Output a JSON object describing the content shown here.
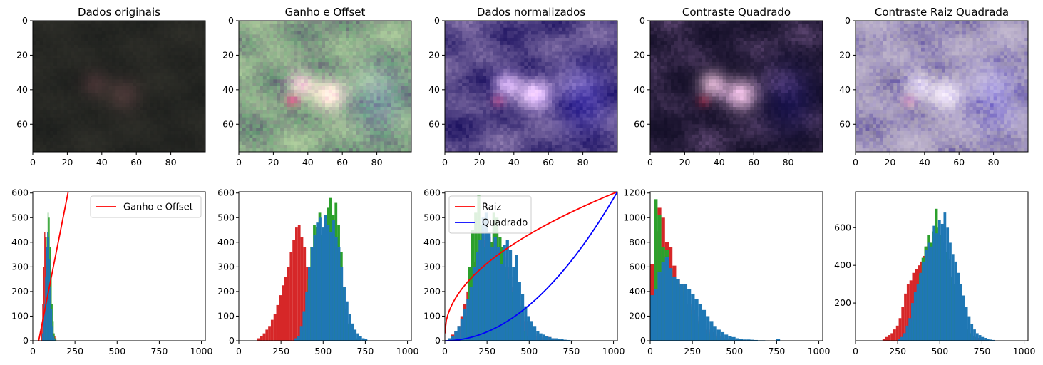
{
  "colors": {
    "red": "#d62728",
    "green": "#2ca02c",
    "blue": "#1f77b4",
    "line_red": "#ff0000",
    "line_blue": "#0000ff"
  },
  "images": [
    {
      "title": "Dados originais",
      "style": "original"
    },
    {
      "title": "Ganho e Offset",
      "style": "gain"
    },
    {
      "title": "Dados normalizados",
      "style": "normalized"
    },
    {
      "title": "Contraste Quadrado",
      "style": "square"
    },
    {
      "title": "Contraste Raiz Quadrada",
      "style": "sqrt"
    }
  ],
  "image_axes": {
    "xticks": [
      "0",
      "20",
      "40",
      "60",
      "80"
    ],
    "yticks": [
      "0",
      "20",
      "40",
      "60"
    ],
    "xlim": [
      0,
      100
    ],
    "ylim": [
      76,
      0
    ]
  },
  "chart_data": [
    {
      "type": "histogram",
      "xlim": [
        0,
        1023
      ],
      "ylim": [
        0,
        605
      ],
      "xticks": [
        "0",
        "250",
        "500",
        "750",
        "1000"
      ],
      "yticks": [
        "0",
        "100",
        "200",
        "300",
        "400",
        "500",
        "600"
      ],
      "series": [
        {
          "color": "red",
          "bins": {
            "start": 50,
            "width": 6,
            "values": [
              60,
              150,
              300,
              440,
              420,
              300,
              220,
              180,
              120,
              90,
              60,
              40,
              30,
              20,
              10
            ]
          }
        },
        {
          "color": "green",
          "bins": {
            "start": 70,
            "width": 6,
            "values": [
              50,
              200,
              420,
              520,
              500,
              380,
              250,
              150,
              80,
              30,
              10
            ]
          }
        },
        {
          "color": "blue",
          "bins": {
            "start": 55,
            "width": 6,
            "values": [
              30,
              80,
              150,
              260,
              380,
              440,
              420,
              330,
              220,
              130,
              60,
              20,
              8
            ]
          }
        }
      ],
      "lines": [
        {
          "name": "Ganho e Offset",
          "color": "line_red",
          "points": [
            [
              35,
              0
            ],
            [
              210,
              605
            ]
          ]
        }
      ],
      "legend": {
        "placement": "upper right",
        "entries": [
          "Ganho e Offset"
        ]
      }
    },
    {
      "type": "histogram",
      "xlim": [
        0,
        1023
      ],
      "ylim": [
        0,
        605
      ],
      "xticks": [
        "0",
        "250",
        "500",
        "750",
        "1000"
      ],
      "yticks": [
        "0",
        "100",
        "200",
        "300",
        "400",
        "500",
        "600"
      ],
      "series": [
        {
          "color": "red",
          "bins": {
            "start": 110,
            "width": 16,
            "values": [
              10,
              20,
              30,
              45,
              60,
              85,
              110,
              145,
              185,
              225,
              260,
              300,
              360,
              410,
              460,
              470,
              420,
              380,
              300,
              250,
              200,
              180,
              160,
              130,
              100,
              80,
              60,
              45,
              30,
              25,
              20,
              40,
              30,
              25,
              20,
              30
            ]
          }
        },
        {
          "color": "green",
          "bins": {
            "start": 360,
            "width": 16,
            "values": [
              10,
              40,
              120,
              250,
              380,
              470,
              460,
              520,
              430,
              470,
              540,
              580,
              510,
              560,
              470,
              360,
              220,
              130,
              70,
              40,
              20,
              10
            ]
          }
        },
        {
          "color": "blue",
          "bins": {
            "start": 330,
            "width": 16,
            "values": [
              10,
              20,
              60,
              120,
              200,
              300,
              380,
              430,
              480,
              500,
              460,
              510,
              470,
              440,
              490,
              420,
              380,
              300,
              220,
              160,
              110,
              70,
              45,
              30,
              20,
              10,
              6
            ]
          }
        }
      ],
      "lines": [],
      "legend": null
    },
    {
      "type": "histogram",
      "xlim": [
        0,
        1023
      ],
      "ylim": [
        0,
        605
      ],
      "xticks": [
        "0",
        "250",
        "500",
        "750",
        "1000"
      ],
      "yticks": [
        "0",
        "100",
        "200",
        "300",
        "400",
        "500",
        "600"
      ],
      "series": [
        {
          "color": "red",
          "bins": {
            "start": 20,
            "width": 18,
            "values": [
              10,
              25,
              40,
              60,
              100,
              150,
              200,
              260,
              320,
              360,
              390,
              410,
              430,
              420,
              400,
              390,
              380,
              350,
              340,
              300,
              260,
              220,
              180,
              140,
              100,
              80,
              60,
              40,
              30,
              20,
              15,
              10,
              20,
              15,
              10,
              8,
              5,
              4,
              3,
              2
            ]
          }
        },
        {
          "color": "green",
          "bins": {
            "start": 120,
            "width": 18,
            "values": [
              100,
              300,
              450,
              520,
              590,
              470,
              380,
              330,
              400,
              520,
              500,
              420,
              380,
              300,
              250,
              200,
              150,
              90,
              60,
              40,
              20,
              10
            ]
          }
        },
        {
          "color": "blue",
          "bins": {
            "start": 20,
            "width": 18,
            "values": [
              10,
              20,
              40,
              60,
              90,
              130,
              170,
              220,
              300,
              360,
              410,
              500,
              520,
              440,
              380,
              420,
              380,
              310,
              390,
              410,
              370,
              300,
              350,
              240,
              190,
              140,
              100,
              80,
              60,
              40,
              30,
              25,
              20,
              15,
              10,
              10,
              8,
              6,
              4,
              3,
              2
            ]
          }
        }
      ],
      "lines": [
        {
          "name": "Raiz",
          "color": "line_red",
          "func": "sqrt"
        },
        {
          "name": "Quadrado",
          "color": "line_blue",
          "func": "square"
        }
      ],
      "legend": {
        "placement": "upper left",
        "entries": [
          "Raiz",
          "Quadrado"
        ]
      }
    },
    {
      "type": "histogram",
      "xlim": [
        0,
        1023
      ],
      "ylim": [
        0,
        1210
      ],
      "xticks": [
        "0",
        "250",
        "500",
        "750",
        "1000"
      ],
      "yticks": [
        "0",
        "200",
        "400",
        "600",
        "800",
        "1000",
        "1200"
      ],
      "series": [
        {
          "color": "red",
          "bins": {
            "start": 0,
            "width": 22,
            "values": [
              620,
              890,
              1080,
              1000,
              800,
              760,
              610,
              500,
              460,
              390,
              300,
              250,
              200,
              160,
              130,
              90,
              70,
              50,
              40,
              30,
              20,
              15,
              10,
              8,
              6,
              4
            ]
          }
        },
        {
          "color": "green",
          "bins": {
            "start": 0,
            "width": 22,
            "values": [
              230,
              1150,
              1020,
              760,
              740,
              580,
              500,
              470,
              440,
              360,
              280,
              220,
              170,
              140,
              90,
              60,
              40,
              30,
              20,
              15,
              10,
              6,
              4
            ]
          }
        },
        {
          "color": "blue",
          "bins": {
            "start": 0,
            "width": 22,
            "values": [
              370,
              420,
              560,
              640,
              680,
              590,
              520,
              500,
              460,
              460,
              420,
              380,
              340,
              300,
              250,
              200,
              160,
              120,
              90,
              70,
              50,
              40,
              30,
              20,
              15,
              10,
              10,
              8,
              6,
              4,
              4,
              3,
              2,
              2,
              14,
              2
            ]
          }
        }
      ],
      "lines": [],
      "legend": null
    },
    {
      "type": "histogram",
      "xlim": [
        0,
        1023
      ],
      "ylim": [
        0,
        790
      ],
      "xticks": [
        "0",
        "250",
        "500",
        "750",
        "1000"
      ],
      "yticks": [
        "200",
        "400",
        "600"
      ],
      "series": [
        {
          "color": "red",
          "bins": {
            "start": 160,
            "width": 16,
            "values": [
              10,
              20,
              30,
              40,
              60,
              80,
              120,
              180,
              250,
              300,
              320,
              360,
              380,
              400,
              420,
              450,
              500,
              520,
              480,
              500,
              520,
              490,
              460,
              420,
              380,
              300,
              220,
              150,
              100,
              70,
              50,
              40,
              30,
              25,
              20,
              15,
              10,
              5
            ]
          }
        },
        {
          "color": "green",
          "bins": {
            "start": 280,
            "width": 16,
            "values": [
              20,
              40,
              60,
              100,
              180,
              260,
              350,
              440,
              500,
              560,
              520,
              580,
              700,
              600,
              560,
              520,
              470,
              430,
              340,
              300,
              260,
              200,
              140,
              100,
              60,
              40,
              20
            ]
          }
        },
        {
          "color": "blue",
          "bins": {
            "start": 250,
            "width": 16,
            "values": [
              10,
              20,
              40,
              80,
              120,
              200,
              260,
              300,
              360,
              420,
              480,
              520,
              500,
              610,
              570,
              640,
              620,
              680,
              600,
              520,
              460,
              420,
              360,
              300,
              240,
              180,
              130,
              90,
              60,
              40,
              30,
              20,
              15,
              10,
              6,
              4
            ]
          }
        }
      ],
      "lines": [],
      "legend": null
    }
  ]
}
